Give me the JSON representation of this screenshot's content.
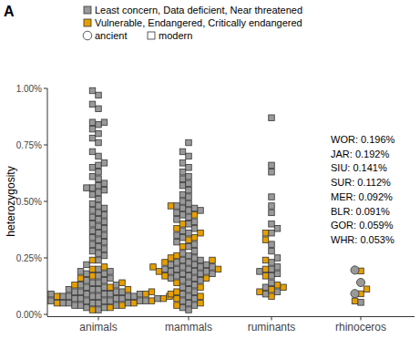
{
  "chart_data": {
    "type": "beeswarm",
    "title": "A",
    "ylabel": "heterozygosity",
    "categories": [
      "animals",
      "mammals",
      "ruminants",
      "rhinoceros"
    ],
    "ylim": [
      -0.01,
      1.0
    ],
    "yticks": [
      {
        "value": 0,
        "label": "0.00%"
      },
      {
        "value": 0.25,
        "label": "0.25%"
      },
      {
        "value": 0.5,
        "label": "0.50%"
      },
      {
        "value": 0.75,
        "label": "0.75%"
      },
      {
        "value": 1.0,
        "label": "1.00%"
      }
    ],
    "markers": [
      {
        "name": "ancient",
        "marker": "circle"
      },
      {
        "name": "modern",
        "marker": "square"
      }
    ],
    "series": [
      {
        "name": "Least concern, Data deficient, Near threatened",
        "color": "#999999",
        "marker": "square",
        "values": [
          [
            0.99,
            0.97,
            0.93,
            0.91,
            0.85,
            0.85,
            0.84,
            0.82,
            0.8,
            0.78,
            0.76,
            0.72,
            0.7,
            0.67,
            0.66,
            0.65,
            0.63,
            0.61,
            0.6,
            0.58,
            0.57,
            0.56,
            0.56,
            0.55,
            0.54,
            0.53,
            0.51,
            0.49,
            0.48,
            0.47,
            0.46,
            0.45,
            0.44,
            0.43,
            0.42,
            0.41,
            0.4,
            0.39,
            0.38,
            0.37,
            0.36,
            0.35,
            0.34,
            0.33,
            0.32,
            0.31,
            0.3,
            0.29,
            0.28,
            0.27,
            0.26,
            0.24,
            0.22,
            0.2,
            0.19,
            0.19,
            0.18,
            0.18,
            0.17,
            0.16,
            0.15,
            0.15,
            0.14,
            0.14,
            0.13,
            0.13,
            0.12,
            0.12,
            0.11,
            0.11,
            0.11,
            0.1,
            0.1,
            0.1,
            0.1,
            0.09,
            0.09,
            0.09,
            0.09,
            0.09,
            0.08,
            0.08,
            0.08,
            0.08,
            0.08,
            0.08,
            0.07,
            0.07,
            0.07,
            0.07,
            0.07,
            0.07,
            0.07,
            0.06,
            0.06,
            0.06,
            0.06,
            0.06,
            0.06,
            0.05,
            0.05,
            0.05,
            0.05,
            0.05,
            0.04,
            0.04,
            0.04,
            0.03,
            0.03,
            0.02
          ],
          [
            0.76,
            0.72,
            0.7,
            0.67,
            0.65,
            0.63,
            0.61,
            0.6,
            0.58,
            0.57,
            0.55,
            0.53,
            0.52,
            0.5,
            0.49,
            0.48,
            0.47,
            0.47,
            0.46,
            0.46,
            0.45,
            0.44,
            0.43,
            0.42,
            0.41,
            0.4,
            0.38,
            0.37,
            0.36,
            0.35,
            0.34,
            0.32,
            0.31,
            0.3,
            0.28,
            0.27,
            0.26,
            0.25,
            0.24,
            0.24,
            0.23,
            0.23,
            0.22,
            0.22,
            0.22,
            0.21,
            0.21,
            0.21,
            0.2,
            0.2,
            0.2,
            0.19,
            0.19,
            0.19,
            0.18,
            0.18,
            0.18,
            0.17,
            0.17,
            0.16,
            0.16,
            0.15,
            0.15,
            0.14,
            0.13,
            0.12,
            0.11,
            0.1,
            0.09,
            0.08,
            0.07,
            0.06,
            0.05,
            0.04,
            0.03,
            0.02
          ],
          [
            0.87,
            0.66,
            0.63,
            0.52,
            0.48,
            0.45,
            0.4,
            0.38,
            0.36,
            0.31,
            0.28,
            0.25,
            0.23,
            0.21,
            0.2,
            0.19,
            0.18,
            0.17,
            0.14,
            0.12,
            0.1,
            0.09
          ],
          []
        ]
      },
      {
        "name": "Vulnerable, Endangered, Critically endangered",
        "color": "#e69f00",
        "marker": "square",
        "values": [
          [
            0.24,
            0.21,
            0.2,
            0.17,
            0.16,
            0.14,
            0.13,
            0.12,
            0.11,
            0.1,
            0.1,
            0.09,
            0.09,
            0.08,
            0.08,
            0.07,
            0.07,
            0.06,
            0.06,
            0.05,
            0.05,
            0.04,
            0.03,
            0.02
          ],
          [
            0.48,
            0.44,
            0.4,
            0.38,
            0.36,
            0.34,
            0.33,
            0.3,
            0.26,
            0.25,
            0.24,
            0.23,
            0.21,
            0.2,
            0.19,
            0.17,
            0.16,
            0.14,
            0.12,
            0.1,
            0.09,
            0.08,
            0.07,
            0.05,
            0.04
          ],
          [
            0.36,
            0.33,
            0.24,
            0.2,
            0.17,
            0.13,
            0.12,
            0.11,
            0.1,
            0.08
          ],
          []
        ]
      }
    ],
    "annotations": [
      {
        "text": "WOR: 0.196%",
        "value": 0.196,
        "color": "#999999",
        "marker": "circle"
      },
      {
        "text": "JAR: 0.192%",
        "value": 0.192,
        "color": "#e69f00",
        "marker": "square"
      },
      {
        "text": "SIU: 0.141%",
        "value": 0.141,
        "color": "#999999",
        "marker": "circle"
      },
      {
        "text": "SUR: 0.112%",
        "value": 0.112,
        "color": "#e69f00",
        "marker": "square"
      },
      {
        "text": "MER: 0.092%",
        "value": 0.092,
        "color": "#999999",
        "marker": "circle"
      },
      {
        "text": "BLR: 0.091%",
        "value": 0.091,
        "color": "#e69f00",
        "marker": "square"
      },
      {
        "text": "GOR: 0.059%",
        "value": 0.059,
        "color": "#e69f00",
        "marker": "square"
      },
      {
        "text": "WHR: 0.053%",
        "value": 0.053,
        "color": "#999999",
        "marker": "square"
      }
    ]
  }
}
